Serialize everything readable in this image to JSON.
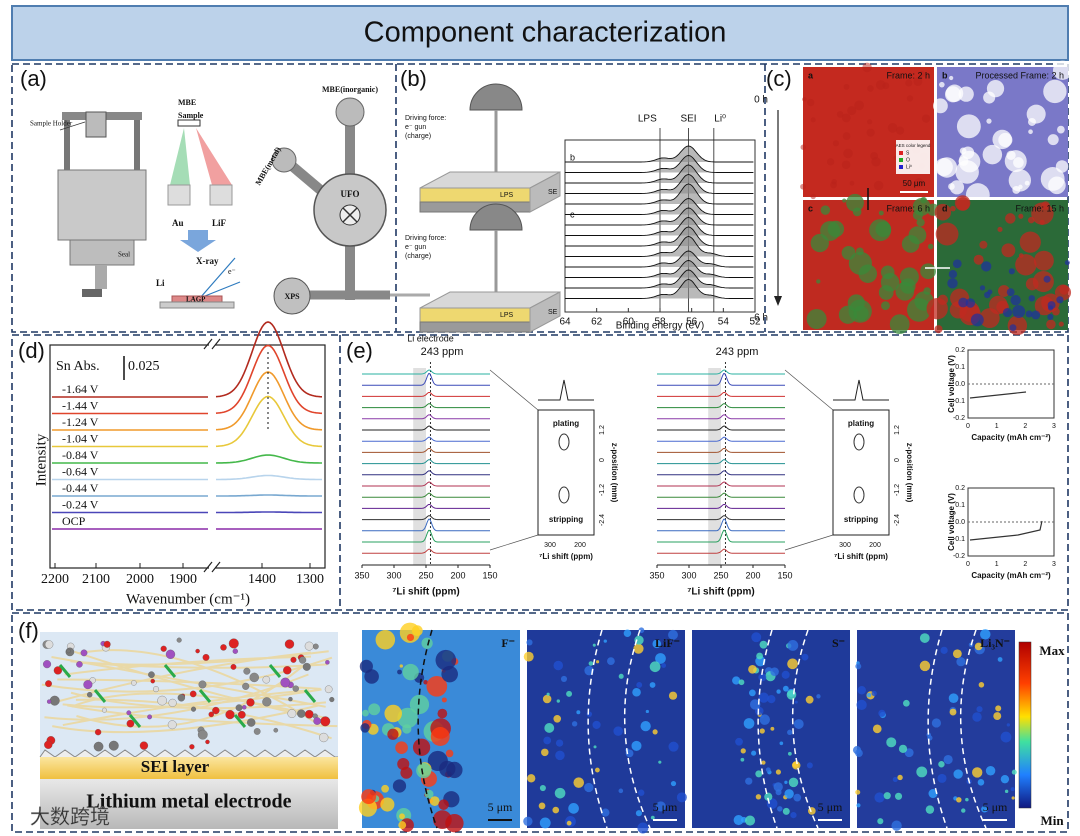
{
  "header": {
    "title": "Component characterization"
  },
  "panels": {
    "a": {
      "label": "(a)",
      "holder": "Sample Holder",
      "seal": "Seal",
      "mbe": "MBE",
      "sample": "Sample",
      "au": "Au",
      "lif": "LiF",
      "xray": "X-ray",
      "li": "Li",
      "electron": "e⁻",
      "lagp": "LAGP",
      "mbe_inorganic": "MBE(inorganic)",
      "mbe_metal": "MBE(metal)",
      "ufo": "UFO",
      "xps": "XPS"
    },
    "b": {
      "label": "(b)",
      "schematic": [
        {
          "force": "Driving force:",
          "gun": "e⁻ gun",
          "charge": "(charge)",
          "lps": "LPS",
          "se": "SE"
        },
        {
          "force": "Driving force:",
          "gun": "e⁻ gun",
          "charge": "(charge)",
          "lps": "LPS",
          "se": "SE"
        }
      ],
      "peaks": [
        "LPS",
        "SEI",
        "Li⁰"
      ],
      "sub": [
        "b",
        "c"
      ],
      "time_start": "0 h",
      "time_end": "6 h",
      "xticks": [
        "64",
        "62",
        "60",
        "58",
        "56",
        "54",
        "52"
      ],
      "xlabel": "Binding energy (eV)"
    },
    "c": {
      "label": "(c)",
      "tiles": [
        {
          "letter": "a",
          "caption": "Frame: 2 h"
        },
        {
          "letter": "b",
          "caption": "Processed Frame: 2 h"
        },
        {
          "letter": "c",
          "caption": "Frame: 6 h"
        },
        {
          "letter": "d",
          "caption": "Frame: 15 h"
        }
      ],
      "legend": [
        "AES color legend",
        "S",
        "O",
        "Li⁰"
      ],
      "scale": "50 μm"
    },
    "d": {
      "label": "(d)",
      "annotation": "Sn  Abs.",
      "scale": "0.025",
      "curves": [
        "-1.64 V",
        "-1.44 V",
        "-1.24 V",
        "-1.04 V",
        "-0.84 V",
        "-0.64 V",
        "-0.44 V",
        "-0.24 V",
        "OCP"
      ],
      "ylabel": "Intensity",
      "xlabel": "Wavenumber (cm⁻¹)",
      "xticks": [
        "2200",
        "2100",
        "2000",
        "1900",
        "1400",
        "1300"
      ]
    },
    "e": {
      "label": "(e)",
      "plots": [
        {
          "header": "Li electrode",
          "ppm": "243 ppm",
          "xlabel": "⁷Li shift (ppm)",
          "xticks": [
            "350",
            "300",
            "250",
            "200",
            "150"
          ],
          "inset": {
            "plating": "plating",
            "stripping": "stripping",
            "ylabel": "z-position (mm)",
            "yticks": [
              "1.2",
              "0",
              "-1.2",
              "-2.4"
            ],
            "xticks": [
              "300",
              "200"
            ],
            "xlabel": "⁷Li shift (ppm)"
          }
        },
        {
          "header": "",
          "ppm": "243 ppm",
          "xlabel": "⁷Li shift (ppm)",
          "xticks": [
            "350",
            "300",
            "250",
            "200",
            "150"
          ],
          "inset": {
            "plating": "plating",
            "stripping": "stripping",
            "ylabel": "z-position (mm)",
            "yticks": [
              "1.2",
              "0",
              "-1.2",
              "-2.4"
            ],
            "xticks": [
              "300",
              "200"
            ],
            "xlabel": "⁷Li shift (ppm)"
          }
        }
      ],
      "voltage": [
        {
          "ylabel": "Cell voltage (V)",
          "yticks": [
            "0.2",
            "0.1",
            "0.0",
            "-0.1",
            "-0.2"
          ],
          "xticks": [
            "0",
            "1",
            "2",
            "3"
          ],
          "xlabel": "Capacity (mAh cm⁻²)"
        },
        {
          "ylabel": "Cell voltage (V)",
          "yticks": [
            "0.2",
            "0.1",
            "0.0",
            "-0.1",
            "-0.2"
          ],
          "xticks": [
            "0",
            "1",
            "2",
            "3"
          ],
          "xlabel": "Capacity (mAh cm⁻²)"
        }
      ]
    },
    "f": {
      "label": "(f)",
      "sei": "SEI layer",
      "electrode": "Lithium metal electrode",
      "maps": [
        {
          "ion": "F⁻",
          "scale": "5 μm"
        },
        {
          "ion": "LiF⁻",
          "scale": "5 μm"
        },
        {
          "ion": "S⁻",
          "scale": "5 μm"
        },
        {
          "ion": "Li₃N⁻",
          "scale": "5 μm"
        }
      ],
      "colorbar": [
        "Max",
        "Min"
      ]
    }
  },
  "watermark": "大数跨境"
}
